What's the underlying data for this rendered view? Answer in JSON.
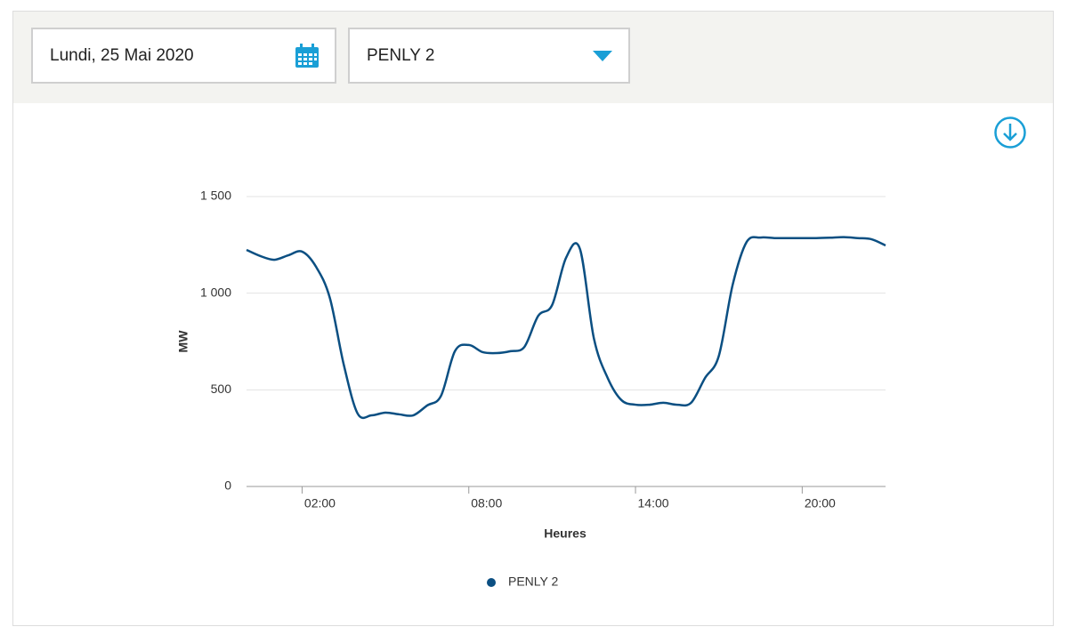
{
  "controls": {
    "date": "Lundi, 25 Mai 2020",
    "unit": "PENLY 2"
  },
  "chart_data": {
    "type": "line",
    "x_label": "Heures",
    "y_label": "MW",
    "x": [
      0,
      0.5,
      1,
      1.5,
      2,
      2.5,
      3,
      3.5,
      4,
      4.5,
      5,
      5.5,
      6,
      6.5,
      7,
      7.5,
      8,
      8.5,
      9,
      9.5,
      10,
      10.5,
      11,
      11.5,
      12,
      12.5,
      13,
      13.5,
      14,
      14.5,
      15,
      15.5,
      16,
      16.5,
      17,
      17.5,
      18,
      18.5,
      19,
      19.5,
      20,
      20.5,
      21,
      21.5,
      22,
      22.5,
      23
    ],
    "series": [
      {
        "name": "PENLY 2",
        "color": "#0b4f82",
        "values": [
          1224,
          1192,
          1173,
          1196,
          1215,
          1137,
          975,
          630,
          377,
          368,
          382,
          373,
          368,
          419,
          469,
          700,
          732,
          695,
          690,
          700,
          722,
          883,
          939,
          1183,
          1229,
          768,
          561,
          446,
          423,
          423,
          433,
          423,
          433,
          561,
          676,
          1045,
          1265,
          1288,
          1285,
          1285,
          1285,
          1285,
          1287,
          1290,
          1285,
          1279,
          1247
        ]
      }
    ],
    "xlim": [
      0,
      23
    ],
    "xticks": [
      {
        "value": 2,
        "label": "02:00"
      },
      {
        "value": 8,
        "label": "08:00"
      },
      {
        "value": 14,
        "label": "14:00"
      },
      {
        "value": 20,
        "label": "20:00"
      }
    ],
    "ylim": [
      0,
      1500
    ],
    "yticks": [
      0,
      500,
      {
        "value": 1000,
        "label": "1 000"
      },
      {
        "value": 1500,
        "label": "1 500"
      }
    ],
    "grid": true
  }
}
